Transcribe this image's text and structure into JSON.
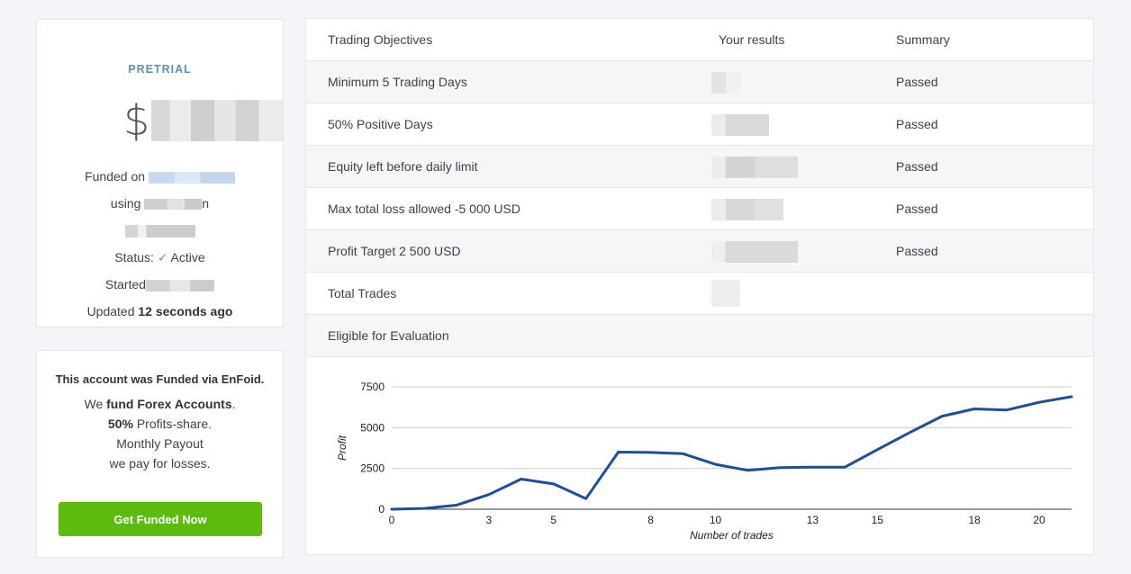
{
  "account": {
    "tier": "PRETRIAL",
    "currency_symbol": "$",
    "funded_on_label": "Funded on",
    "using_label": "using",
    "using_suffix": "n",
    "status_label": "Status:",
    "status_value": "Active",
    "started_label": "Started",
    "updated_label": "Updated",
    "updated_value": "12 seconds ago"
  },
  "promo": {
    "title": "This account was Funded via EnFoid.",
    "line1_prefix": "We ",
    "line1_bold": "fund Forex Accounts",
    "line1_suffix": ".",
    "line2_bold": "50%",
    "line2_suffix": " Profits-share.",
    "line3": "Monthly Payout",
    "line4": "we pay for losses.",
    "cta_label": "Get Funded Now"
  },
  "objectives": {
    "headers": [
      "Trading Objectives",
      "Your results",
      "Summary"
    ],
    "rows": [
      {
        "objective": "Minimum 5 Trading Days",
        "summary": "Passed"
      },
      {
        "objective": "50% Positive Days",
        "summary": "Passed"
      },
      {
        "objective": "Equity left before daily limit",
        "summary": "Passed"
      },
      {
        "objective": "Max total loss allowed -5 000 USD",
        "summary": "Passed"
      },
      {
        "objective": "Profit Target 2 500 USD",
        "summary": "Passed"
      },
      {
        "objective": "Total Trades",
        "summary": ""
      },
      {
        "objective": "Eligible for Evaluation",
        "summary": ""
      }
    ]
  },
  "chart_data": {
    "type": "line",
    "xlabel": "Number of trades",
    "ylabel": "Profit",
    "xlim": [
      0,
      21
    ],
    "ylim": [
      0,
      7500
    ],
    "x_ticks": [
      0,
      3,
      5,
      8,
      10,
      13,
      15,
      18,
      20
    ],
    "y_ticks": [
      0,
      2500,
      5000,
      7500
    ],
    "grid": true,
    "line_color": "#1f4e99",
    "series": [
      {
        "x": [
          0,
          1,
          2,
          3,
          4,
          5,
          6,
          7,
          8,
          9,
          10,
          11,
          12,
          13,
          14,
          15,
          16,
          17,
          18,
          19,
          20,
          21
        ],
        "values": [
          0,
          50,
          250,
          900,
          1850,
          1550,
          650,
          3500,
          3480,
          3400,
          2750,
          2380,
          2550,
          2580,
          2580,
          3650,
          4700,
          5700,
          6150,
          6080,
          6550,
          6900
        ]
      }
    ]
  }
}
